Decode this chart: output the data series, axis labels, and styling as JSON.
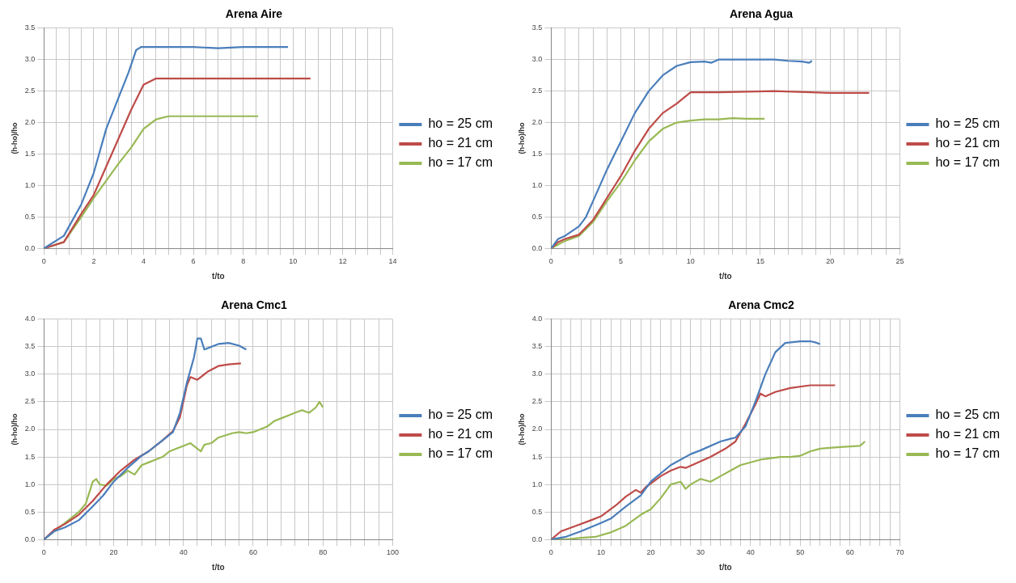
{
  "chart_data": [
    {
      "type": "line",
      "title": "Arena Aire",
      "xlabel": "t/to",
      "ylabel": "(h-ho)/ho",
      "grid": true,
      "legend": "right",
      "marker": "none",
      "line_style": "solid",
      "xlim": [
        0,
        14
      ],
      "ylim": [
        0,
        3.5
      ],
      "xticks": [
        0,
        {
          "value": 0.5,
          "label": null
        },
        {
          "value": 1,
          "label": null
        },
        {
          "value": 1.5,
          "label": null
        },
        2,
        {
          "value": 2.5,
          "label": null
        },
        {
          "value": 3,
          "label": null
        },
        {
          "value": 3.5,
          "label": null
        },
        4,
        {
          "value": 4.5,
          "label": null
        },
        {
          "value": 5,
          "label": null
        },
        {
          "value": 5.5,
          "label": null
        },
        6,
        {
          "value": 6.5,
          "label": null
        },
        {
          "value": 7,
          "label": null
        },
        {
          "value": 7.5,
          "label": null
        },
        8,
        {
          "value": 8.5,
          "label": null
        },
        {
          "value": 9,
          "label": null
        },
        {
          "value": 9.5,
          "label": null
        },
        10,
        {
          "value": 10.5,
          "label": null
        },
        {
          "value": 11,
          "label": null
        },
        {
          "value": 11.5,
          "label": null
        },
        12,
        {
          "value": 12.5,
          "label": null
        },
        {
          "value": 13,
          "label": null
        },
        {
          "value": 13.5,
          "label": null
        },
        14
      ],
      "yticks": [
        {
          "value": 0,
          "label": "0.0"
        },
        0.5,
        {
          "value": 1,
          "label": "1.0"
        },
        1.5,
        {
          "value": 2,
          "label": "2.0"
        },
        2.5,
        {
          "value": 3,
          "label": "3.0"
        },
        3.5
      ],
      "series": [
        {
          "name": "ho = 25 cm",
          "color": "#4a7ebb",
          "x": [
            0,
            0.8,
            1.5,
            2,
            2.5,
            3,
            3.4,
            3.7,
            3.9,
            6,
            7,
            8,
            9.8
          ],
          "values": [
            0,
            0.2,
            0.7,
            1.2,
            1.9,
            2.4,
            2.8,
            3.15,
            3.2,
            3.2,
            3.18,
            3.2,
            3.2
          ]
        },
        {
          "name": "ho = 21 cm",
          "color": "#be4b48",
          "x": [
            0,
            0.8,
            1.5,
            2,
            2.5,
            3,
            3.5,
            4,
            4.5,
            10.7
          ],
          "values": [
            0,
            0.1,
            0.55,
            0.85,
            1.3,
            1.75,
            2.2,
            2.6,
            2.7,
            2.7
          ]
        },
        {
          "name": "ho = 17 cm",
          "color": "#98b954",
          "x": [
            0,
            0.8,
            1.5,
            2,
            3,
            3.5,
            4,
            4.5,
            5,
            8.6
          ],
          "values": [
            0,
            0.1,
            0.5,
            0.8,
            1.35,
            1.6,
            1.9,
            2.05,
            2.1,
            2.1
          ]
        }
      ]
    },
    {
      "type": "line",
      "title": "Arena Agua",
      "xlabel": "t/to",
      "ylabel": "(h-ho)/ho",
      "grid": true,
      "legend": "right",
      "marker": "none",
      "line_style": "solid",
      "xlim": [
        0,
        25
      ],
      "ylim": [
        0,
        3.5
      ],
      "xticks": [
        0,
        {
          "value": 1,
          "label": null
        },
        {
          "value": 2,
          "label": null
        },
        {
          "value": 3,
          "label": null
        },
        {
          "value": 4,
          "label": null
        },
        5,
        {
          "value": 6,
          "label": null
        },
        {
          "value": 7,
          "label": null
        },
        {
          "value": 8,
          "label": null
        },
        {
          "value": 9,
          "label": null
        },
        10,
        {
          "value": 11,
          "label": null
        },
        {
          "value": 12,
          "label": null
        },
        {
          "value": 13,
          "label": null
        },
        {
          "value": 14,
          "label": null
        },
        15,
        {
          "value": 16,
          "label": null
        },
        {
          "value": 17,
          "label": null
        },
        {
          "value": 18,
          "label": null
        },
        {
          "value": 19,
          "label": null
        },
        20,
        {
          "value": 21,
          "label": null
        },
        {
          "value": 22,
          "label": null
        },
        {
          "value": 23,
          "label": null
        },
        {
          "value": 24,
          "label": null
        },
        25
      ],
      "yticks": [
        {
          "value": 0,
          "label": "0.0"
        },
        0.5,
        {
          "value": 1,
          "label": "1.0"
        },
        1.5,
        {
          "value": 2,
          "label": "2.0"
        },
        2.5,
        {
          "value": 3,
          "label": "3.0"
        },
        3.5
      ],
      "series": [
        {
          "name": "ho = 25 cm",
          "color": "#4a7ebb",
          "x": [
            0,
            0.5,
            1,
            2,
            2.5,
            3,
            4,
            5,
            6,
            7,
            8,
            9,
            10,
            11,
            11.5,
            12,
            14,
            16,
            17,
            18,
            18.5,
            18.7
          ],
          "values": [
            0,
            0.15,
            0.2,
            0.35,
            0.5,
            0.75,
            1.25,
            1.7,
            2.15,
            2.5,
            2.75,
            2.9,
            2.96,
            2.97,
            2.95,
            3,
            3,
            3,
            2.98,
            2.97,
            2.95,
            2.98
          ]
        },
        {
          "name": "ho = 21 cm",
          "color": "#be4b48",
          "x": [
            0,
            0.5,
            1,
            2,
            3,
            4,
            5,
            6,
            7,
            8,
            9,
            10,
            12,
            16,
            20,
            22.8
          ],
          "values": [
            0,
            0.1,
            0.15,
            0.22,
            0.45,
            0.8,
            1.15,
            1.55,
            1.9,
            2.15,
            2.3,
            2.48,
            2.48,
            2.5,
            2.47,
            2.47
          ]
        },
        {
          "name": "ho = 17 cm",
          "color": "#98b954",
          "x": [
            0,
            1,
            2,
            3,
            4,
            5,
            6,
            7,
            8,
            9,
            10,
            11,
            12,
            13,
            14,
            15.3
          ],
          "values": [
            0,
            0.12,
            0.2,
            0.42,
            0.75,
            1.05,
            1.4,
            1.7,
            1.9,
            2.0,
            2.03,
            2.05,
            2.05,
            2.07,
            2.06,
            2.06
          ]
        }
      ]
    },
    {
      "type": "line",
      "title": "Arena Cmc1",
      "xlabel": "t/to",
      "ylabel": "(h-ho)/ho",
      "grid": true,
      "legend": "right",
      "marker": "none",
      "line_style": "solid",
      "xlim": [
        0,
        100
      ],
      "ylim": [
        0,
        4
      ],
      "xticks": [
        0,
        {
          "value": 4,
          "label": null
        },
        {
          "value": 8,
          "label": null
        },
        {
          "value": 12,
          "label": null
        },
        {
          "value": 16,
          "label": null
        },
        20,
        {
          "value": 24,
          "label": null
        },
        {
          "value": 28,
          "label": null
        },
        {
          "value": 32,
          "label": null
        },
        {
          "value": 36,
          "label": null
        },
        40,
        {
          "value": 44,
          "label": null
        },
        {
          "value": 48,
          "label": null
        },
        {
          "value": 52,
          "label": null
        },
        {
          "value": 56,
          "label": null
        },
        60,
        {
          "value": 64,
          "label": null
        },
        {
          "value": 68,
          "label": null
        },
        {
          "value": 72,
          "label": null
        },
        {
          "value": 76,
          "label": null
        },
        80,
        {
          "value": 84,
          "label": null
        },
        {
          "value": 88,
          "label": null
        },
        {
          "value": 92,
          "label": null
        },
        {
          "value": 96,
          "label": null
        },
        100
      ],
      "yticks": [
        {
          "value": 0,
          "label": "0.0"
        },
        0.5,
        {
          "value": 1,
          "label": "1.0"
        },
        1.5,
        {
          "value": 2,
          "label": "2.0"
        },
        2.5,
        {
          "value": 3,
          "label": "3.0"
        },
        3.5,
        {
          "value": 4,
          "label": "4.0"
        }
      ],
      "series": [
        {
          "name": "ho = 25 cm",
          "color": "#4a7ebb",
          "x": [
            0,
            3,
            6,
            10,
            14,
            17,
            20,
            24,
            28,
            30,
            34,
            37,
            39,
            41,
            43,
            44,
            45,
            46,
            50,
            53,
            56,
            58
          ],
          "values": [
            0,
            0.15,
            0.22,
            0.35,
            0.6,
            0.8,
            1.05,
            1.3,
            1.52,
            1.6,
            1.8,
            1.95,
            2.3,
            2.85,
            3.3,
            3.65,
            3.65,
            3.45,
            3.55,
            3.57,
            3.52,
            3.45
          ]
        },
        {
          "name": "ho = 21 cm",
          "color": "#be4b48",
          "x": [
            0,
            3,
            6,
            10,
            14,
            18,
            22,
            26,
            30,
            34,
            37,
            39,
            41,
            42,
            44,
            47,
            50,
            53,
            56.5
          ],
          "values": [
            0,
            0.18,
            0.28,
            0.45,
            0.7,
            1.0,
            1.25,
            1.45,
            1.6,
            1.8,
            1.97,
            2.22,
            2.8,
            2.95,
            2.9,
            3.05,
            3.15,
            3.18,
            3.2
          ]
        },
        {
          "name": "ho = 17 cm",
          "color": "#98b954",
          "x": [
            0,
            3,
            6,
            10,
            12,
            14,
            15,
            16,
            18,
            20,
            22,
            24,
            26,
            28,
            30,
            32,
            34,
            36,
            38,
            40,
            42,
            44,
            45,
            46,
            48,
            50,
            54,
            56,
            58,
            60,
            64,
            66,
            68,
            70,
            72,
            74,
            76,
            78,
            79,
            80
          ],
          "values": [
            0,
            0.15,
            0.3,
            0.5,
            0.65,
            1.05,
            1.1,
            1.0,
            0.98,
            1.1,
            1.15,
            1.25,
            1.18,
            1.35,
            1.4,
            1.45,
            1.5,
            1.6,
            1.65,
            1.7,
            1.75,
            1.65,
            1.6,
            1.72,
            1.75,
            1.85,
            1.93,
            1.95,
            1.93,
            1.95,
            2.05,
            2.15,
            2.2,
            2.25,
            2.3,
            2.35,
            2.3,
            2.4,
            2.5,
            2.4
          ]
        }
      ]
    },
    {
      "type": "line",
      "title": "Arena Cmc2",
      "xlabel": "t/to",
      "ylabel": "(h-ho)/ho",
      "grid": true,
      "legend": "right",
      "marker": "none",
      "line_style": "solid",
      "xlim": [
        0,
        70
      ],
      "ylim": [
        0,
        4
      ],
      "xticks": [
        0,
        {
          "value": 2,
          "label": null
        },
        {
          "value": 4,
          "label": null
        },
        {
          "value": 6,
          "label": null
        },
        {
          "value": 8,
          "label": null
        },
        10,
        {
          "value": 12,
          "label": null
        },
        {
          "value": 14,
          "label": null
        },
        {
          "value": 16,
          "label": null
        },
        {
          "value": 18,
          "label": null
        },
        20,
        {
          "value": 22,
          "label": null
        },
        {
          "value": 24,
          "label": null
        },
        {
          "value": 26,
          "label": null
        },
        {
          "value": 28,
          "label": null
        },
        30,
        {
          "value": 32,
          "label": null
        },
        {
          "value": 34,
          "label": null
        },
        {
          "value": 36,
          "label": null
        },
        {
          "value": 38,
          "label": null
        },
        40,
        {
          "value": 42,
          "label": null
        },
        {
          "value": 44,
          "label": null
        },
        {
          "value": 46,
          "label": null
        },
        {
          "value": 48,
          "label": null
        },
        50,
        {
          "value": 52,
          "label": null
        },
        {
          "value": 54,
          "label": null
        },
        {
          "value": 56,
          "label": null
        },
        {
          "value": 58,
          "label": null
        },
        60,
        {
          "value": 62,
          "label": null
        },
        {
          "value": 64,
          "label": null
        },
        {
          "value": 66,
          "label": null
        },
        {
          "value": 68,
          "label": null
        },
        70
      ],
      "yticks": [
        {
          "value": 0,
          "label": "0.0"
        },
        0.5,
        {
          "value": 1,
          "label": "1.0"
        },
        1.5,
        {
          "value": 2,
          "label": "2.0"
        },
        2.5,
        {
          "value": 3,
          "label": "3.0"
        },
        3.5,
        {
          "value": 4,
          "label": "4.0"
        }
      ],
      "series": [
        {
          "name": "ho = 25 cm",
          "color": "#4a7ebb",
          "x": [
            0,
            3,
            6,
            10,
            12,
            15,
            18,
            20,
            24,
            28,
            30,
            34,
            36,
            37,
            39,
            41,
            43,
            45,
            47,
            50,
            52,
            53,
            54
          ],
          "values": [
            0,
            0.05,
            0.15,
            0.3,
            0.38,
            0.6,
            0.8,
            1.05,
            1.35,
            1.55,
            1.62,
            1.78,
            1.83,
            1.85,
            2.05,
            2.5,
            3.0,
            3.4,
            3.57,
            3.6,
            3.6,
            3.58,
            3.55
          ]
        },
        {
          "name": "ho = 21 cm",
          "color": "#be4b48",
          "x": [
            0,
            2,
            5,
            8,
            10,
            13,
            15,
            17,
            18,
            19,
            22,
            24,
            26,
            27,
            29,
            32,
            35,
            37,
            39,
            41,
            42,
            43,
            45,
            48,
            52,
            57
          ],
          "values": [
            0,
            0.15,
            0.25,
            0.35,
            0.42,
            0.62,
            0.78,
            0.9,
            0.85,
            0.95,
            1.15,
            1.25,
            1.32,
            1.3,
            1.38,
            1.5,
            1.65,
            1.78,
            2.1,
            2.45,
            2.65,
            2.6,
            2.68,
            2.75,
            2.8,
            2.8
          ]
        },
        {
          "name": "ho = 17 cm",
          "color": "#98b954",
          "x": [
            0,
            3,
            6,
            9,
            12,
            15,
            18,
            20,
            22,
            24,
            26,
            27,
            28,
            30,
            32,
            34,
            36,
            38,
            42,
            46,
            48,
            50,
            52,
            54,
            58,
            62,
            63
          ],
          "values": [
            0,
            0,
            0.03,
            0.05,
            0.13,
            0.25,
            0.45,
            0.55,
            0.75,
            1.0,
            1.05,
            0.92,
            1.0,
            1.1,
            1.05,
            1.15,
            1.25,
            1.35,
            1.45,
            1.5,
            1.5,
            1.52,
            1.6,
            1.65,
            1.68,
            1.7,
            1.78
          ]
        }
      ]
    }
  ]
}
